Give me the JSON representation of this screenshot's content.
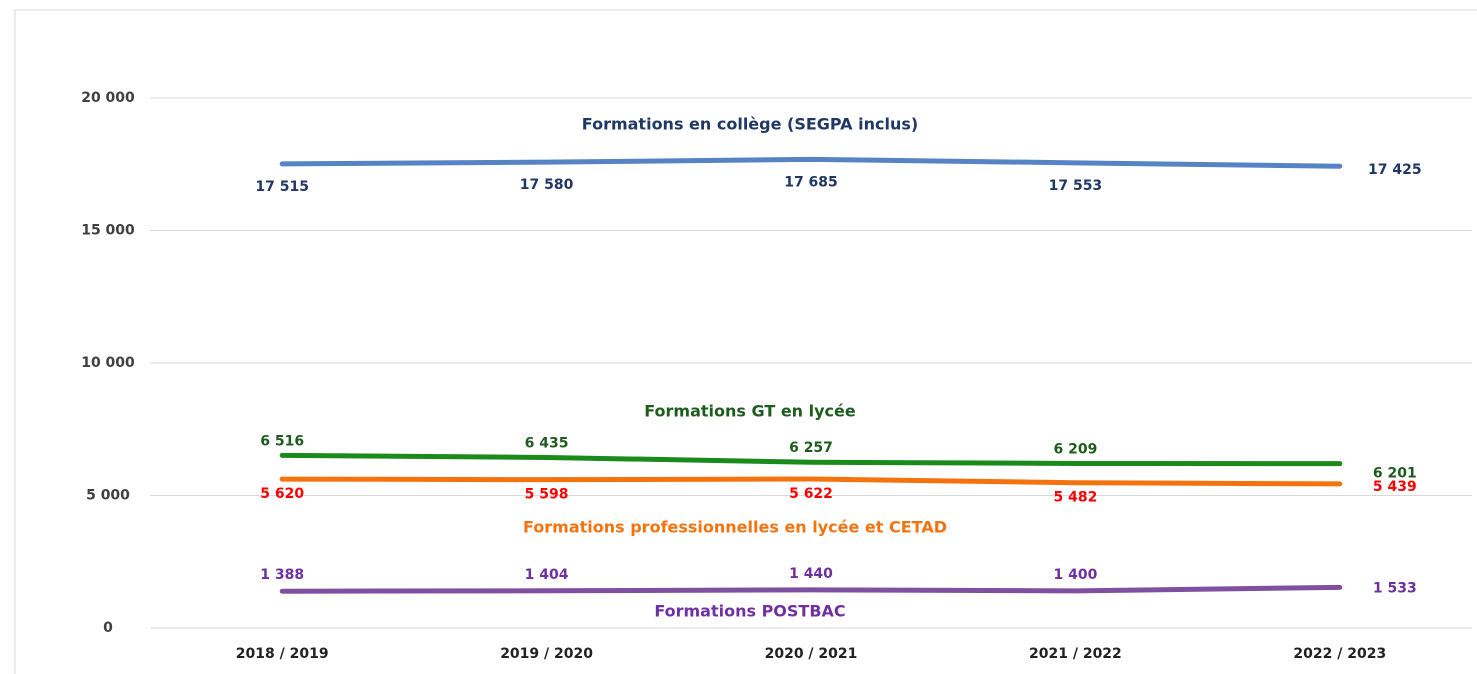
{
  "chart_data": {
    "type": "line",
    "categories": [
      "2018 / 2019",
      "2019 / 2020",
      "2020 / 2021",
      "2021 / 2022",
      "2022 / 2023"
    ],
    "ylim": [
      0,
      20000
    ],
    "yticks": [
      {
        "value": 0,
        "label": "0"
      },
      {
        "value": 5000,
        "label": "5 000"
      },
      {
        "value": 10000,
        "label": "10 000"
      },
      {
        "value": 15000,
        "label": "15 000"
      },
      {
        "value": 20000,
        "label": "20 000"
      }
    ],
    "grid": true,
    "series": [
      {
        "name": "Formations en collège (SEGPA inclus)",
        "color": "#5683c4",
        "label_color": "#1f3864",
        "values": [
          17515,
          17580,
          17685,
          17553,
          17425
        ],
        "value_labels": [
          "17 515",
          "17 580",
          "17 685",
          "17 553",
          "17 425"
        ]
      },
      {
        "name": "Formations GT en lycée",
        "color": "#1a8a1a",
        "label_color": "#1e5c1e",
        "values": [
          6516,
          6435,
          6257,
          6209,
          6201
        ],
        "value_labels": [
          "6 516",
          "6 435",
          "6 257",
          "6 209",
          "6 201"
        ]
      },
      {
        "name": "Formations professionnelles en lycée et CETAD",
        "color": "#f4730f",
        "label_color": "#ff0000",
        "name_color": "#f4730f",
        "values": [
          5620,
          5598,
          5622,
          5482,
          5439
        ],
        "value_labels": [
          "5 620",
          "5 598",
          "5 622",
          "5 482",
          "5 439"
        ]
      },
      {
        "name": "Formations POSTBAC",
        "color": "#7f4fa0",
        "label_color": "#7030a0",
        "values": [
          1388,
          1404,
          1440,
          1400,
          1533
        ],
        "value_labels": [
          "1 388",
          "1 404",
          "1 440",
          "1 400",
          "1 533"
        ]
      }
    ]
  }
}
